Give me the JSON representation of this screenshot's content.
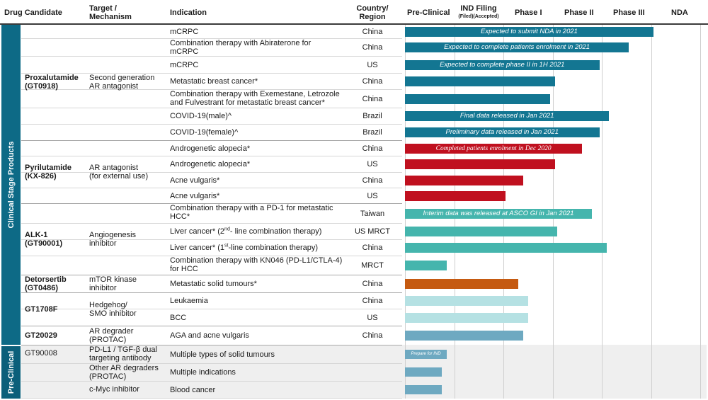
{
  "header": {
    "drug": "Drug Candidate",
    "target_l1": "Target /",
    "target_l2": "Mechanism",
    "indication": "Indication",
    "country_l1": "Country/",
    "country_l2": "Region",
    "preclinical": "Pre-Clinical",
    "ind_l1": "IND Filing",
    "ind_l2": "(Filed)(Accepted)",
    "phase1": "Phase I",
    "phase2": "Phase II",
    "phase3": "Phase III",
    "nda": "NDA"
  },
  "sidebar": {
    "clinical": "Clinical Stage Products",
    "preclinical": "Pre-Clinical"
  },
  "groups": [
    {
      "drug_l1": "Proxalutamide",
      "drug_l2": "(GT0918)",
      "target_l1": "Second generation",
      "target_l2": "AR antagonist"
    },
    {
      "drug_l1": "Pyrilutamide",
      "drug_l2": "(KX-826)",
      "target_l1": "AR antagonist",
      "target_l2": "(for external use)"
    },
    {
      "drug_l1": "ALK-1",
      "drug_l2": "(GT90001)",
      "target_l1": "Angiogenesis",
      "target_l2": "inhibitor"
    },
    {
      "drug_l1": "Detorsertib",
      "drug_l2": "(GT0486)",
      "target_l1": "mTOR kinase",
      "target_l2": "inhibitor"
    },
    {
      "drug_l1": "GT1708F",
      "drug_l2": "",
      "target_l1": "Hedgehog/",
      "target_l2": "SMO inhibitor"
    },
    {
      "drug_l1": "GT20029",
      "drug_l2": "",
      "target_l1": "AR degrader",
      "target_l2": "(PROTAC)"
    },
    {
      "drug_l1": "GT90008",
      "drug_l2": "",
      "target_l1": "PD-L1 / TGF-β dual",
      "target_l2": "targeting antibody"
    },
    {
      "drug_l1": "",
      "drug_l2": "",
      "target_l1": "Other AR degraders",
      "target_l2": "(PROTAC)"
    },
    {
      "drug_l1": "",
      "drug_l2": "",
      "target_l1": "c-Myc inhibitor",
      "target_l2": ""
    }
  ],
  "rows": [
    {
      "ind_l1": "mCRPC",
      "ind_l2": "",
      "country": "China"
    },
    {
      "ind_l1": "Combination therapy with Abiraterone for",
      "ind_l2": "mCRPC",
      "country": "China"
    },
    {
      "ind_l1": "mCRPC",
      "ind_l2": "",
      "country": "US"
    },
    {
      "ind_l1": "Metastatic breast cancer*",
      "ind_l2": "",
      "country": "China"
    },
    {
      "ind_l1": "Combination therapy with Exemestane, Letrozole",
      "ind_l2": "and Fulvestrant for metastatic breast cancer*",
      "country": "China"
    },
    {
      "ind_l1": "COVID-19(male)^",
      "ind_l2": "",
      "country": "Brazil"
    },
    {
      "ind_l1": "COVID-19(female)^",
      "ind_l2": "",
      "country": "Brazil"
    },
    {
      "ind_l1": "Androgenetic alopecia*",
      "ind_l2": "",
      "country": "China"
    },
    {
      "ind_l1": "Androgenetic alopecia*",
      "ind_l2": "",
      "country": "US"
    },
    {
      "ind_l1": "Acne vulgaris*",
      "ind_l2": "",
      "country": "China"
    },
    {
      "ind_l1": "Acne vulgaris*",
      "ind_l2": "",
      "country": "US"
    },
    {
      "ind_l1": "Combination therapy with a PD-1 for metastatic",
      "ind_l2": "HCC*",
      "country": "Taiwan"
    },
    {
      "ind_l1": "Liver cancer* (2",
      "ind_sup": "nd",
      "ind_rest": "- line combination therapy)",
      "ind_l2": "",
      "country": "US MRCT"
    },
    {
      "ind_l1": "Liver cancer* (1",
      "ind_sup": "st",
      "ind_rest": "-line combination therapy)",
      "ind_l2": "",
      "country": "China"
    },
    {
      "ind_l1": "Combination therapy with KN046 (PD-L1/CTLA-4)",
      "ind_l2": "for HCC",
      "country": "MRCT"
    },
    {
      "ind_l1": "Metastatic solid tumours*",
      "ind_l2": "",
      "country": "China"
    },
    {
      "ind_l1": "Leukaemia",
      "ind_l2": "",
      "country": "China"
    },
    {
      "ind_l1": "BCC",
      "ind_l2": "",
      "country": "US"
    },
    {
      "ind_l1": "AGA and acne vulgaris",
      "ind_l2": "",
      "country": "China"
    },
    {
      "ind_l1": "Multiple types of solid tumours",
      "ind_l2": "",
      "country": ""
    },
    {
      "ind_l1": "Multiple indications",
      "ind_l2": "",
      "country": ""
    },
    {
      "ind_l1": "Blood cancer",
      "ind_l2": "",
      "country": ""
    }
  ],
  "chart_data": {
    "type": "bar",
    "orientation": "horizontal",
    "title": "",
    "stages": [
      "Pre-Clinical",
      "IND Filing",
      "Phase I",
      "Phase II",
      "Phase III",
      "NDA"
    ],
    "xlim": [
      0,
      6
    ],
    "bars": [
      {
        "value": 5.05,
        "color": "#137692",
        "label": "Expected to submit NDA in 2021"
      },
      {
        "value": 4.55,
        "color": "#137692",
        "label": "Expected to complete patients enrolment in 2021"
      },
      {
        "value": 3.95,
        "color": "#137692",
        "label": "Expected to complete phase II in 1H 2021"
      },
      {
        "value": 3.05,
        "color": "#137692",
        "label": ""
      },
      {
        "value": 2.95,
        "color": "#137692",
        "label": ""
      },
      {
        "value": 4.15,
        "color": "#137692",
        "label": "Final data released in Jan 2021"
      },
      {
        "value": 3.95,
        "color": "#137692",
        "label": "Preliminary data released in Jan 2021"
      },
      {
        "value": 3.6,
        "color": "#c0101f",
        "label": "Completed patients enrolment in Dec 2020"
      },
      {
        "value": 3.05,
        "color": "#c0101f",
        "label": ""
      },
      {
        "value": 2.4,
        "color": "#c0101f",
        "label": ""
      },
      {
        "value": 2.05,
        "color": "#c0101f",
        "label": ""
      },
      {
        "value": 3.8,
        "color": "#45b5ad",
        "label": "Interim data was released at ASCO GI in Jan 2021"
      },
      {
        "value": 3.1,
        "color": "#45b5ad",
        "label": ""
      },
      {
        "value": 4.1,
        "color": "#45b5ad",
        "label": ""
      },
      {
        "value": 0.85,
        "color": "#45b5ad",
        "label": ""
      },
      {
        "value": 2.3,
        "color": "#c55a11",
        "label": ""
      },
      {
        "value": 2.5,
        "color": "#b5e1e3",
        "label": ""
      },
      {
        "value": 2.5,
        "color": "#b5e1e3",
        "label": ""
      },
      {
        "value": 2.4,
        "color": "#6ea9c1",
        "label": ""
      },
      {
        "value": 0.85,
        "color": "#6ea9c1",
        "label": "Prepare for IND"
      },
      {
        "value": 0.75,
        "color": "#6ea9c1",
        "label": ""
      },
      {
        "value": 0.75,
        "color": "#6ea9c1",
        "label": ""
      }
    ]
  }
}
